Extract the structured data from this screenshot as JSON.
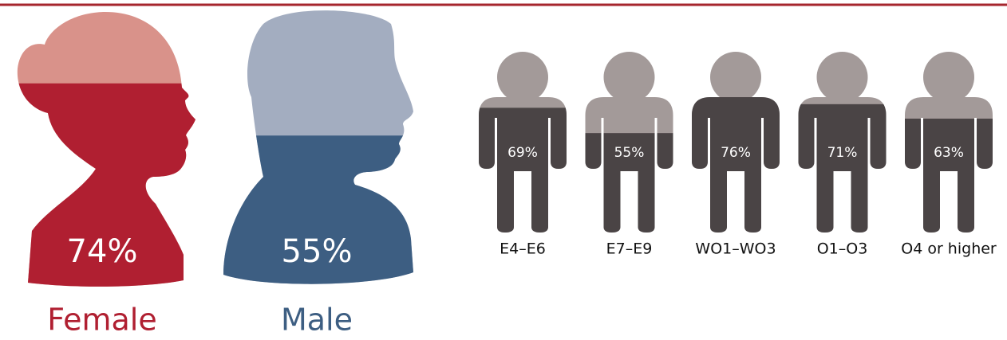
{
  "chart_data": [
    {
      "type": "pictogram",
      "shape": "head",
      "categories": [
        "Female",
        "Male"
      ],
      "values": [
        74,
        55
      ],
      "value_labels": [
        "74%",
        "55%"
      ],
      "colors": [
        {
          "filled": "#b01f31",
          "empty": "#d9928a"
        },
        {
          "filled": "#3d5e82",
          "empty": "#a3adc0"
        }
      ]
    },
    {
      "type": "pictogram",
      "shape": "person",
      "categories": [
        "E4–E6",
        "E7–E9",
        "WO1–WO3",
        "O1–O3",
        "O4 or higher"
      ],
      "values": [
        69,
        55,
        76,
        71,
        63
      ],
      "value_labels": [
        "69%",
        "55%",
        "76%",
        "71%",
        "63%"
      ],
      "colors": [
        {
          "filled": "#4a4445",
          "empty": "#a39a99"
        }
      ]
    }
  ]
}
